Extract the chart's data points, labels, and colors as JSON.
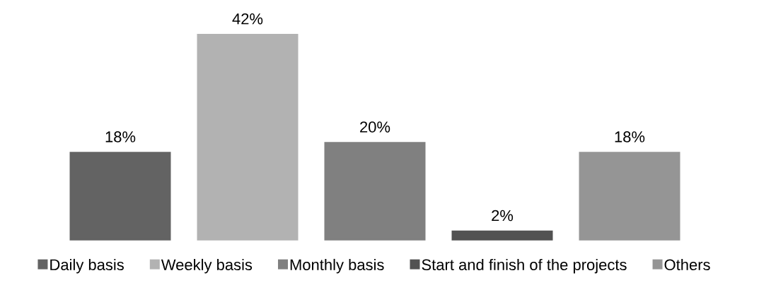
{
  "chart_data": {
    "type": "bar",
    "categories": [
      null
    ],
    "series": [
      {
        "name": "Daily basis",
        "color": "#636363",
        "values": [
          18
        ],
        "value_labels": [
          "18%"
        ]
      },
      {
        "name": "Weekly basis",
        "color": "#b2b2b2",
        "values": [
          42
        ],
        "value_labels": [
          "42%"
        ]
      },
      {
        "name": "Monthly basis",
        "color": "#808080",
        "values": [
          20
        ],
        "value_labels": [
          "20%"
        ]
      },
      {
        "name": "Start and finish of the projects",
        "color": "#525252",
        "values": [
          2
        ],
        "value_labels": [
          "2%"
        ]
      },
      {
        "name": "Others",
        "color": "#959595",
        "values": [
          18
        ],
        "value_labels": [
          "18%"
        ]
      }
    ],
    "legend": "bottom"
  }
}
